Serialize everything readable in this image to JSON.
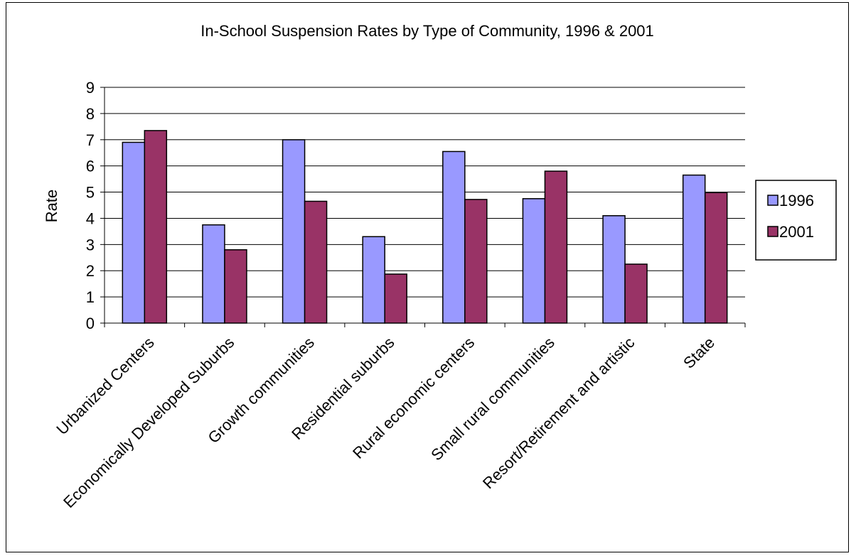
{
  "chart_data": {
    "type": "bar",
    "title": "In-School Suspension Rates by Type of Community, 1996 & 2001",
    "xlabel": "",
    "ylabel": "Rate",
    "ylim": [
      0,
      9
    ],
    "yticks": [
      0,
      1,
      2,
      3,
      4,
      5,
      6,
      7,
      8,
      9
    ],
    "grid": true,
    "legend_position": "right",
    "categories": [
      "Urbanized Centers",
      "Economically Developed Suburbs",
      "Growth communities",
      "Residential suburbs",
      "Rural economic centers",
      "Small rural communities",
      "Resort/Retirement and artistic",
      "State"
    ],
    "series": [
      {
        "name": "1996",
        "color": "#9999ff",
        "values": [
          6.9,
          3.75,
          7.0,
          3.3,
          6.55,
          4.75,
          4.1,
          5.65
        ]
      },
      {
        "name": "2001",
        "color": "#993366",
        "values": [
          7.35,
          2.8,
          4.65,
          1.87,
          4.72,
          5.8,
          2.25,
          4.98
        ]
      }
    ]
  }
}
